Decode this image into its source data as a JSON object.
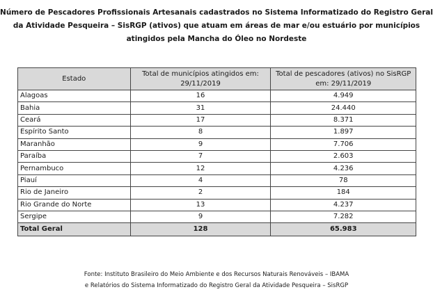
{
  "header": {
    "title_lines": [
      "Número de Pescadores Profissionais Artesanais cadastrados no Sistema Informatizado do Registro Geral",
      "da Atividade Pesqueira – SisRGP (ativos) que atuam em áreas de mar e/ou estuário por municípios",
      "atingidos pela Mancha do Óleo no Nordeste"
    ]
  },
  "table": {
    "columns": [
      "Estado",
      "Total de municípios atingidos em: 29/11/2019",
      "Total de pescadores (ativos) no SisRGP em: 29/11/2019"
    ],
    "rows": [
      [
        "Alagoas",
        "16",
        "4.949"
      ],
      [
        "Bahia",
        "31",
        "24.440"
      ],
      [
        "Ceará",
        "17",
        "8.371"
      ],
      [
        "Espírito Santo",
        "8",
        "1.897"
      ],
      [
        "Maranhão",
        "9",
        "7.706"
      ],
      [
        "Paraíba",
        "7",
        "2.603"
      ],
      [
        "Pernambuco",
        "12",
        "4.236"
      ],
      [
        "Piauí",
        "4",
        "78"
      ],
      [
        "Rio de Janeiro",
        "2",
        "184"
      ],
      [
        "Rio Grande do Norte",
        "13",
        "4.237"
      ],
      [
        "Sergipe",
        "9",
        "7.282"
      ]
    ],
    "total": [
      "Total Geral",
      "128",
      "65.983"
    ]
  },
  "footer": {
    "source_lines": [
      "Fonte: Instituto Brasileiro do Meio Ambiente e dos Recursos Naturais Renováveis – IBAMA",
      "e Relatórios do Sistema Informatizado do Registro Geral da Atividade Pesqueira – SisRGP"
    ]
  }
}
